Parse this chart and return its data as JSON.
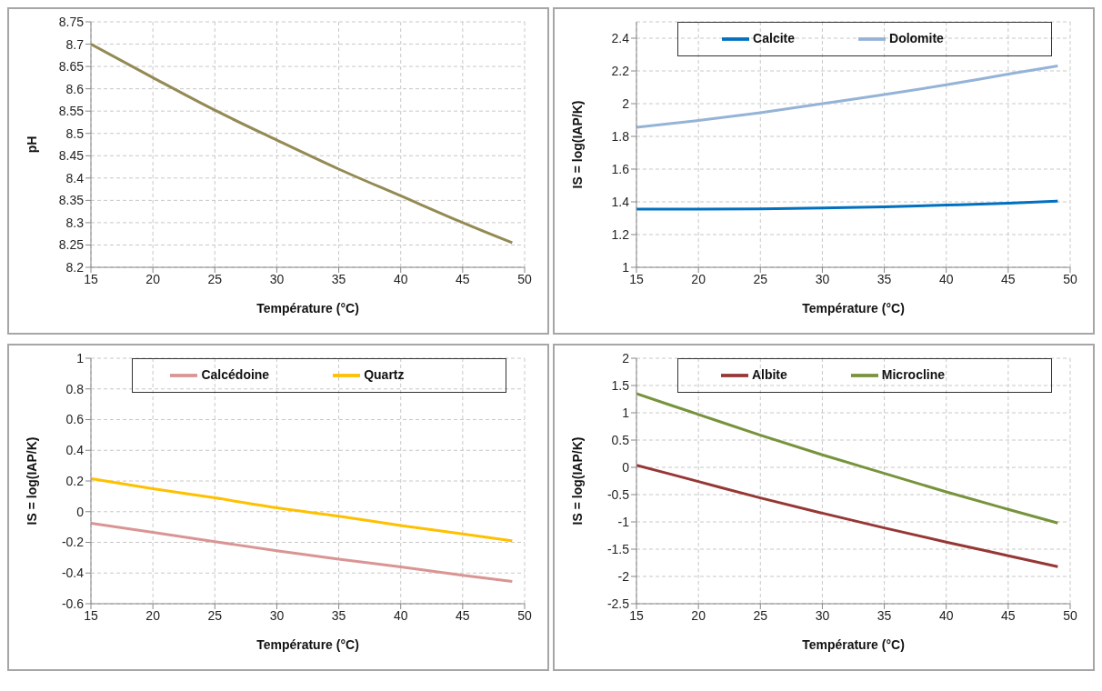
{
  "chart_data": [
    {
      "type": "line",
      "x": [
        15,
        20,
        25,
        30,
        35,
        40,
        45,
        49
      ],
      "xlabel": "Température (°C)",
      "ylabel": "pH",
      "xlim": [
        15,
        50
      ],
      "xticks": [
        15,
        20,
        25,
        30,
        35,
        40,
        45,
        50
      ],
      "ylim": [
        8.2,
        8.75
      ],
      "yticks": [
        8.2,
        8.25,
        8.3,
        8.35,
        8.4,
        8.45,
        8.5,
        8.55,
        8.6,
        8.65,
        8.7,
        8.75
      ],
      "grid": true,
      "legend": false,
      "marker": "none",
      "line_style": "solid",
      "series": [
        {
          "color": "#948a54",
          "values": [
            8.7,
            8.625,
            8.552,
            8.485,
            8.42,
            8.36,
            8.3,
            8.255
          ]
        }
      ]
    },
    {
      "type": "line",
      "x": [
        15,
        20,
        25,
        30,
        35,
        40,
        45,
        49
      ],
      "xlabel": "Température (°C)",
      "ylabel": "IS = log(IAP/K)",
      "xlim": [
        15,
        50
      ],
      "xticks": [
        15,
        20,
        25,
        30,
        35,
        40,
        45,
        50
      ],
      "ylim": [
        1,
        2.5
      ],
      "yticks": [
        1,
        1.2,
        1.4,
        1.6,
        1.8,
        2,
        2.2,
        2.4
      ],
      "grid": true,
      "legend": "top",
      "marker": "none",
      "line_style": "solid",
      "series": [
        {
          "name": "Calcite",
          "color": "#0070c0",
          "values": [
            1.355,
            1.355,
            1.357,
            1.362,
            1.37,
            1.38,
            1.392,
            1.405
          ]
        },
        {
          "name": "Dolomite",
          "color": "#95b3d7",
          "values": [
            1.855,
            1.897,
            1.945,
            2.0,
            2.055,
            2.115,
            2.18,
            2.23
          ]
        }
      ]
    },
    {
      "type": "line",
      "x": [
        15,
        20,
        25,
        30,
        35,
        40,
        45,
        49
      ],
      "xlabel": "Température (°C)",
      "ylabel": "IS = log(IAP/K)",
      "xlim": [
        15,
        50
      ],
      "xticks": [
        15,
        20,
        25,
        30,
        35,
        40,
        45,
        50
      ],
      "ylim": [
        -0.6,
        1
      ],
      "yticks": [
        -0.6,
        -0.4,
        -0.2,
        0,
        0.2,
        0.4,
        0.6,
        0.8,
        1
      ],
      "grid": true,
      "legend": "top",
      "marker": "none",
      "line_style": "solid",
      "series": [
        {
          "name": "Calcédoine",
          "color": "#d99594",
          "values": [
            -0.075,
            -0.135,
            -0.195,
            -0.255,
            -0.31,
            -0.36,
            -0.415,
            -0.455
          ]
        },
        {
          "name": "Quartz",
          "color": "#ffc000",
          "values": [
            0.215,
            0.15,
            0.09,
            0.025,
            -0.03,
            -0.09,
            -0.145,
            -0.19
          ]
        }
      ]
    },
    {
      "type": "line",
      "x": [
        15,
        20,
        25,
        30,
        35,
        40,
        45,
        49
      ],
      "xlabel": "Température (°C)",
      "ylabel": "IS = log(IAP/K)",
      "xlim": [
        15,
        50
      ],
      "xticks": [
        15,
        20,
        25,
        30,
        35,
        40,
        45,
        50
      ],
      "ylim": [
        -2.5,
        2
      ],
      "yticks": [
        -2.5,
        -2,
        -1.5,
        -1,
        -0.5,
        0,
        0.5,
        1,
        1.5,
        2
      ],
      "grid": true,
      "legend": "top",
      "marker": "none",
      "line_style": "solid",
      "series": [
        {
          "name": "Albite",
          "color": "#953735",
          "values": [
            0.04,
            -0.26,
            -0.56,
            -0.84,
            -1.11,
            -1.37,
            -1.62,
            -1.82
          ]
        },
        {
          "name": "Microcline",
          "color": "#77933c",
          "values": [
            1.35,
            0.97,
            0.59,
            0.23,
            -0.11,
            -0.45,
            -0.77,
            -1.02
          ]
        }
      ]
    }
  ]
}
